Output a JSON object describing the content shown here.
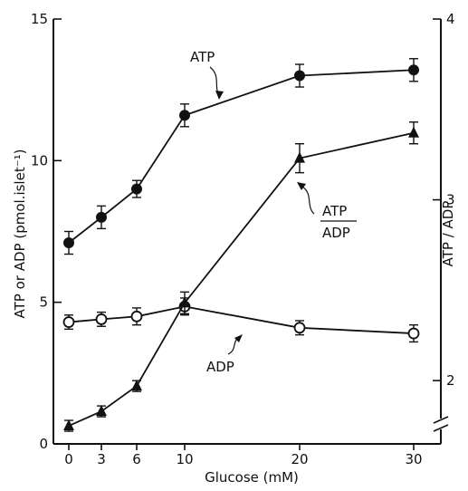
{
  "chart_data": {
    "type": "line",
    "xlabel": "Glucose (mM)",
    "ylabel_left": "ATP or ADP (pmol.islet⁻¹)",
    "ylabel_right": "ATP / ADP",
    "x_ticks": [
      "0",
      "3",
      "6",
      "10",
      "20",
      "30"
    ],
    "y_left_ticks": [
      "0",
      "5",
      "10",
      "15"
    ],
    "y_right_ticks": [
      "2",
      "3",
      "4"
    ],
    "ylim_left": [
      0,
      15
    ],
    "ylim_right": [
      1.65,
      4
    ],
    "grid": false,
    "series": [
      {
        "name": "ATP",
        "axis": "left",
        "marker": "filled-circle",
        "x": [
          0,
          3,
          6,
          10,
          20,
          30
        ],
        "y": [
          7.1,
          8.0,
          9.0,
          11.6,
          13.0,
          13.2
        ],
        "err": [
          0.4,
          0.4,
          0.3,
          0.4,
          0.4,
          0.4
        ]
      },
      {
        "name": "ADP",
        "axis": "left",
        "marker": "open-circle",
        "x": [
          0,
          3,
          6,
          10,
          20,
          30
        ],
        "y": [
          4.3,
          4.4,
          4.5,
          4.85,
          4.1,
          3.9
        ],
        "err": [
          0.25,
          0.25,
          0.3,
          0.3,
          0.25,
          0.3
        ]
      },
      {
        "name": "ATP / ADP",
        "axis": "right",
        "marker": "filled-triangle",
        "x": [
          0,
          3,
          6,
          10,
          20,
          30
        ],
        "y": [
          1.75,
          1.83,
          1.97,
          2.43,
          3.23,
          3.37
        ],
        "err": [
          0.03,
          0.03,
          0.03,
          0.06,
          0.08,
          0.06
        ]
      }
    ],
    "annotations": {
      "atp": "ATP",
      "adp": "ADP",
      "ratio_top": "ATP",
      "ratio_bottom": "ADP"
    }
  }
}
